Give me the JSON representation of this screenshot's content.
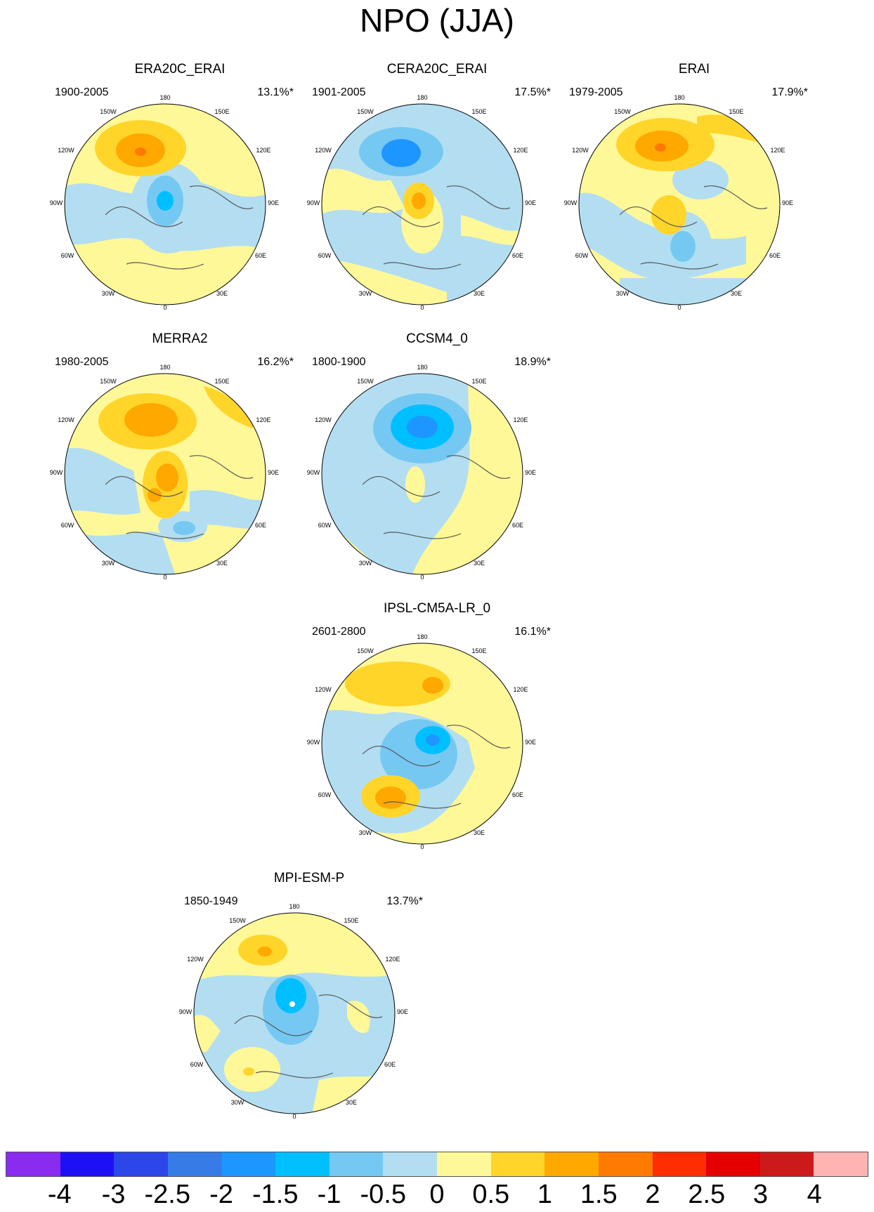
{
  "title": "NPO (JJA)",
  "lon_labels": [
    "180",
    "150E",
    "120E",
    "90E",
    "60E",
    "30E",
    "0",
    "30W",
    "60W",
    "90W",
    "120W",
    "150W"
  ],
  "panels": [
    {
      "title": "ERA20C_ERAI",
      "years": "1900-2005",
      "pct": "13.1%*"
    },
    {
      "title": "CERA20C_ERAI",
      "years": "1901-2005",
      "pct": "17.5%*"
    },
    {
      "title": "ERAI",
      "years": "1979-2005",
      "pct": "17.9%*"
    },
    {
      "title": "MERRA2",
      "years": "1980-2005",
      "pct": "16.2%*"
    },
    {
      "title": "CCSM4_0",
      "years": "1800-1900",
      "pct": "18.9%*"
    },
    {
      "title": "IPSL-CM5A-LR_0",
      "years": "2601-2800",
      "pct": "16.1%*"
    },
    {
      "title": "MPI-ESM-P",
      "years": "1850-1949",
      "pct": "13.7%*"
    }
  ],
  "colorbar": {
    "labels": [
      "-4",
      "-3",
      "-2.5",
      "-2",
      "-1.5",
      "-1",
      "-0.5",
      "0",
      "0.5",
      "1",
      "1.5",
      "2",
      "2.5",
      "3",
      "4"
    ],
    "colors": [
      "#8a2bf0",
      "#1e10f5",
      "#2c46e8",
      "#377be6",
      "#1e96ff",
      "#00bfff",
      "#75c8f2",
      "#b3def2",
      "#fff898",
      "#ffd52a",
      "#ffa800",
      "#ff7a00",
      "#ff2d00",
      "#e40000",
      "#cc1a1a",
      "#ffb3b3"
    ]
  }
}
